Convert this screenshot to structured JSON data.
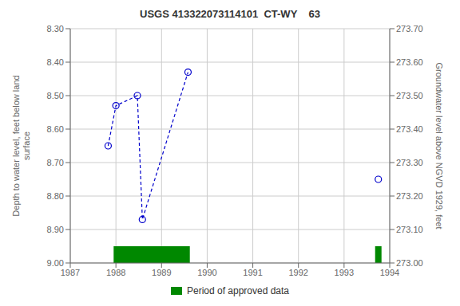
{
  "chart_data": {
    "type": "line",
    "title": "USGS 413322073114101  CT-WY    63",
    "ylabel": "Depth to water level, feet below land\nsurface",
    "y2label": "Groundwater level above NGVD 1929, feet",
    "xlim": [
      1987,
      1994
    ],
    "xticks": [
      1987,
      1988,
      1989,
      1990,
      1991,
      1992,
      1993,
      1994
    ],
    "ylim": [
      9.0,
      8.3
    ],
    "yticks": [
      {
        "value": 8.3,
        "label": "8.30"
      },
      {
        "value": 8.4,
        "label": "8.40"
      },
      {
        "value": 8.5,
        "label": "8.50"
      },
      {
        "value": 8.6,
        "label": "8.60"
      },
      {
        "value": 8.7,
        "label": "8.70"
      },
      {
        "value": 8.8,
        "label": "8.80"
      },
      {
        "value": 8.9,
        "label": "8.90"
      },
      {
        "value": 9.0,
        "label": "9.00"
      }
    ],
    "y2lim": [
      273.0,
      273.7
    ],
    "y2ticks": [
      {
        "value": 273.0,
        "label": "273.00"
      },
      {
        "value": 273.1,
        "label": "273.10"
      },
      {
        "value": 273.2,
        "label": "273.20"
      },
      {
        "value": 273.3,
        "label": "273.30"
      },
      {
        "value": 273.4,
        "label": "273.40"
      },
      {
        "value": 273.5,
        "label": "273.50"
      },
      {
        "value": 273.6,
        "label": "273.60"
      },
      {
        "value": 273.7,
        "label": "273.70"
      }
    ],
    "grid": true,
    "legend": "bottom",
    "series": [
      {
        "color": "#0000cc",
        "line_style": "dashed",
        "marker": "circle",
        "x": [
          1987.83,
          1988.0,
          1988.47,
          1988.58,
          1989.58
        ],
        "values": [
          8.65,
          8.53,
          8.5,
          8.87,
          8.43
        ]
      },
      {
        "color": "#0000cc",
        "line_style": "none",
        "marker": "circle",
        "x": [
          1993.75
        ],
        "values": [
          8.75
        ]
      },
      {
        "name": "Period of approved data",
        "type": "band",
        "color": "#008800",
        "x_ranges": [
          [
            1987.95,
            1989.62
          ],
          [
            1993.68,
            1993.82
          ]
        ],
        "y_range": [
          8.95,
          9.0
        ]
      }
    ]
  }
}
